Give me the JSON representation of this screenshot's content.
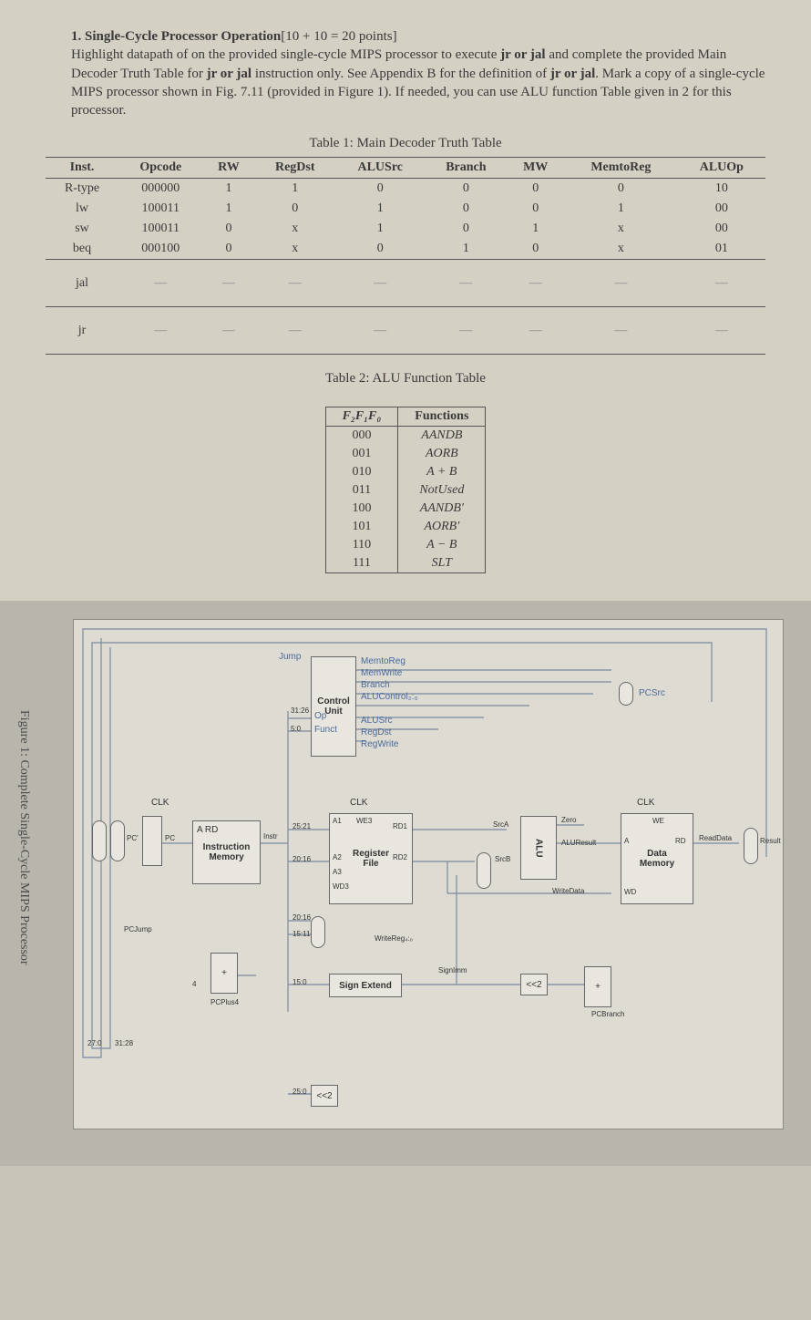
{
  "question": {
    "number": "1.",
    "title": "Single-Cycle Processor Operation",
    "points": "[10 + 10 = 20 points]",
    "body_pre": "Highlight datapath of on the provided single-cycle MIPS processor to execute ",
    "bold1": "jr or jal",
    "body_mid1": " and complete the provided Main Decoder Truth Table for ",
    "bold2": "jr or jal",
    "body_mid2": " instruction only. See Appendix B for the definition of ",
    "bold3": "jr or jal",
    "body_end": ". Mark a copy of a single-cycle MIPS processor shown in Fig. 7.11 (provided in Figure 1). If needed, you can use ALU function Table given in 2 for this processor."
  },
  "table1": {
    "caption": "Table 1: Main Decoder Truth Table",
    "columns": [
      "Inst.",
      "Opcode",
      "RW",
      "RegDst",
      "ALUSrc",
      "Branch",
      "MW",
      "MemtoReg",
      "ALUOp"
    ],
    "rows": [
      [
        "R-type",
        "000000",
        "1",
        "1",
        "0",
        "0",
        "0",
        "0",
        "10"
      ],
      [
        "lw",
        "100011",
        "1",
        "0",
        "1",
        "0",
        "0",
        "1",
        "00"
      ],
      [
        "sw",
        "100011",
        "0",
        "x",
        "1",
        "0",
        "1",
        "x",
        "00"
      ],
      [
        "beq",
        "000100",
        "0",
        "x",
        "0",
        "1",
        "0",
        "x",
        "01"
      ]
    ],
    "blank_rows": [
      {
        "label": "jal"
      },
      {
        "label": "jr"
      }
    ],
    "dash": "—"
  },
  "table2": {
    "caption": "Table 2: ALU Function Table",
    "columns_html": [
      "F₂F₁F₀",
      "Functions"
    ],
    "rows": [
      [
        "000",
        "AANDB"
      ],
      [
        "001",
        "AORB"
      ],
      [
        "010",
        "A + B"
      ],
      [
        "011",
        "NotUsed"
      ],
      [
        "100",
        "AANDB'"
      ],
      [
        "101",
        "AORB'"
      ],
      [
        "110",
        "A − B"
      ],
      [
        "111",
        "SLT"
      ]
    ]
  },
  "diagram": {
    "caption": "Figure 1: Complete Single-Cycle MIPS Processor",
    "control_unit": "Control\nUnit",
    "signals": {
      "jump": "Jump",
      "memtoreg": "MemtoReg",
      "memwrite": "MemWrite",
      "branch": "Branch",
      "alucontrol": "ALUControl₂:₀",
      "alusrc": "ALUSrc",
      "regdst": "RegDst",
      "regwrite": "RegWrite",
      "pcsrc": "PCSrc",
      "op": "Op",
      "funct": "Funct"
    },
    "blocks": {
      "inst_mem_top": "A        RD",
      "inst_mem": "Instruction\nMemory",
      "reg_file": "Register\nFile",
      "data_mem": "Data\nMemory",
      "sign_extend": "Sign Extend",
      "alu": "ALU",
      "shl1": "<<2",
      "shl2": "<<2"
    },
    "ports": {
      "clk": "CLK",
      "pc_prime": "PC'",
      "pc": "PC",
      "instr": "Instr",
      "a1": "A1",
      "a2": "A2",
      "a3": "A3",
      "wd3": "WD3",
      "we3": "WE3",
      "rd1": "RD1",
      "rd2": "RD2",
      "srca": "SrcA",
      "srcb": "SrcB",
      "zero": "Zero",
      "aluresult": "ALUResult",
      "we": "WE",
      "a": "A",
      "rd": "RD",
      "wd": "WD",
      "readdata": "ReadData",
      "result": "Result",
      "writedata": "WriteData",
      "writereg": "WriteReg₄:₀",
      "signimm": "SignImm",
      "pcjump": "PCJump",
      "pcplus4": "PCPlus4",
      "pcbranch": "PCBranch",
      "four": "4"
    },
    "bits": {
      "b31_26": "31:26",
      "b5_0": "5:0",
      "b25_21": "25:21",
      "b20_16": "20:16",
      "b15_11": "15:11",
      "b15_0": "15:0",
      "b25_0": "25:0",
      "b27_0": "27:0",
      "b31_28": "31:28"
    }
  }
}
